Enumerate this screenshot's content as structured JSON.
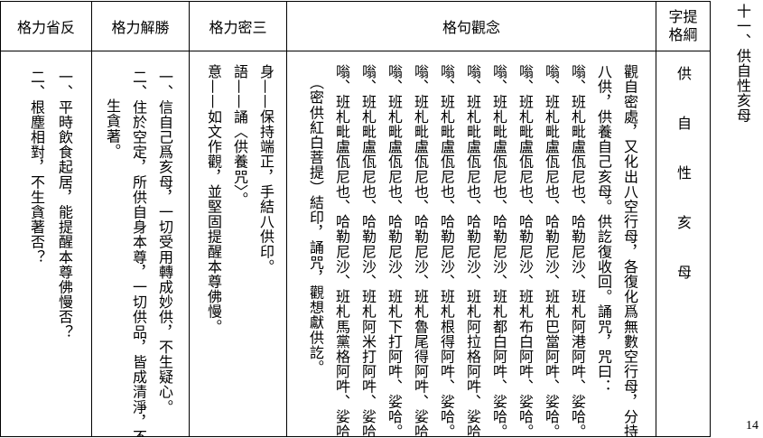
{
  "title": "十一、供自性亥母",
  "page_number": "14",
  "headers": {
    "reflection": "格力省反",
    "victory": "格力解勝",
    "three_secrets": "格力密三",
    "concept": "格句觀念",
    "outline_line1": "字提",
    "outline_line2": "格綱"
  },
  "outline": "供自性亥母",
  "concept_lines": [
    "觀自密處，又化出八空行母，各復化爲無數空行母，分持",
    "八供，供養自己亥母。供訖復收回。誦咒，咒曰：",
    "嗡、班札毗盧佤尼也、哈勒尼沙、班札阿港阿吽、娑哈。",
    "嗡、班札毗盧佤尼也、哈勒尼沙、班札巴當阿吽、娑哈。",
    "嗡、班札毗盧佤尼也、哈勒尼沙、班札布白阿吽、娑哈。",
    "嗡、班札毗盧佤尼也、哈勒尼沙、班札都白阿吽、娑哈。",
    "嗡、班札毗盧佤尼也、哈勒尼沙、班札阿拉格阿吽、娑哈。",
    "嗡、班札毗盧佤尼也、哈勒尼沙、班札根得阿吽、娑哈。",
    "嗡、班札毗盧佤尼也、哈勒尼沙、班札魯尾得阿吽、娑哈。",
    "嗡、班札毗盧佤尼也、哈勒尼沙、班札下打阿吽、娑哈。",
    "嗡、班札毗盧佤尼也、哈勒尼沙、班札阿米打阿吽、娑哈。",
    "嗡、班札毗盧佤尼也、哈勒尼沙、班札馬黨格阿吽、娑哈。",
    "（密供紅白菩提）結印，誦咒，觀想獻供訖。"
  ],
  "three_secrets": [
    "身——保持端正，手結八供印。",
    "語——誦〈供養咒〉。",
    "意——如文作觀，並堅固提醒本尊佛慢。"
  ],
  "victory": [
    "一、信自己爲亥母，一切受用轉成妙供，不生疑心。",
    "二、住於空定，所供自身本尊，一切供品，皆成清淨，不",
    "生貪著。"
  ],
  "reflection": [
    "一、平時飲食起居，能提醒本尊佛慢否？",
    "二、根塵相對，不生貪著否？"
  ]
}
